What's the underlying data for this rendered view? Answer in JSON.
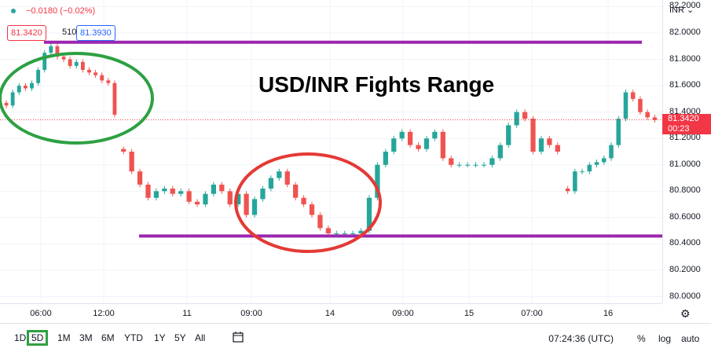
{
  "legend": {
    "change": "−0.0180 (−0.02%)",
    "bid": "81.3420",
    "spread": "510",
    "ask": "81.3930"
  },
  "currency_menu": "INR",
  "price_label": {
    "price": "81.3420",
    "countdown": "00:23"
  },
  "title": "USD/INR Fights Range",
  "timeframes": [
    "1D",
    "5D",
    "1M",
    "3M",
    "6M",
    "YTD",
    "1Y",
    "5Y",
    "All"
  ],
  "active_timeframe": "5D",
  "clock": "07:24:36 (UTC)",
  "options": {
    "percent": "%",
    "log": "log",
    "auto": "auto"
  },
  "colors": {
    "up": "#26a69a",
    "down": "#ef5350",
    "range_line": "#9c27b0",
    "green_circle": "#2ea043",
    "red_circle": "#e53935"
  },
  "chart_data": {
    "type": "candlestick",
    "title": "USD/INR Fights Range",
    "y_ticks": [
      "82.2000",
      "82.0000",
      "81.8000",
      "81.6000",
      "81.4000",
      "81.2000",
      "81.0000",
      "80.8000",
      "80.6000",
      "80.4000",
      "80.2000",
      "80.0000"
    ],
    "x_ticks": [
      "06:00",
      "12:00",
      "11",
      "09:00",
      "14",
      "09:00",
      "15",
      "07:00",
      "16"
    ],
    "ylim": [
      79.95,
      82.25
    ],
    "last_price": 81.342,
    "resistance": 81.93,
    "support": 80.46,
    "series": [
      {
        "segment": 1,
        "closes": [
          81.45,
          81.55,
          81.6,
          81.58,
          81.62,
          81.72,
          81.85,
          81.9,
          81.82,
          81.8,
          81.75,
          81.78,
          81.72,
          81.7,
          81.68,
          81.64,
          81.62,
          81.38
        ]
      },
      {
        "segment": 2,
        "closes": [
          81.1,
          80.95,
          80.85,
          80.75,
          80.8,
          80.82,
          80.78,
          80.8,
          80.72,
          80.7,
          80.78,
          80.85,
          80.8,
          80.7,
          80.78,
          80.62,
          80.74,
          80.82,
          80.9,
          80.95,
          80.85,
          80.75,
          80.7,
          80.62,
          80.52,
          80.48,
          80.48,
          80.48,
          80.48,
          80.5,
          80.75,
          81.0,
          81.1,
          81.2,
          81.25,
          81.15,
          81.12,
          81.2,
          81.25,
          81.05,
          81.0,
          81.0,
          81.0,
          81.0,
          81.0,
          81.05,
          81.15,
          81.3,
          81.4,
          81.35,
          81.1,
          81.2,
          81.15,
          81.1
        ]
      },
      {
        "segment": 3,
        "closes": [
          80.8,
          80.95,
          80.95,
          81.0,
          81.02,
          81.05,
          81.15,
          81.35,
          81.55,
          81.5,
          81.4,
          81.36,
          81.34
        ]
      }
    ]
  }
}
